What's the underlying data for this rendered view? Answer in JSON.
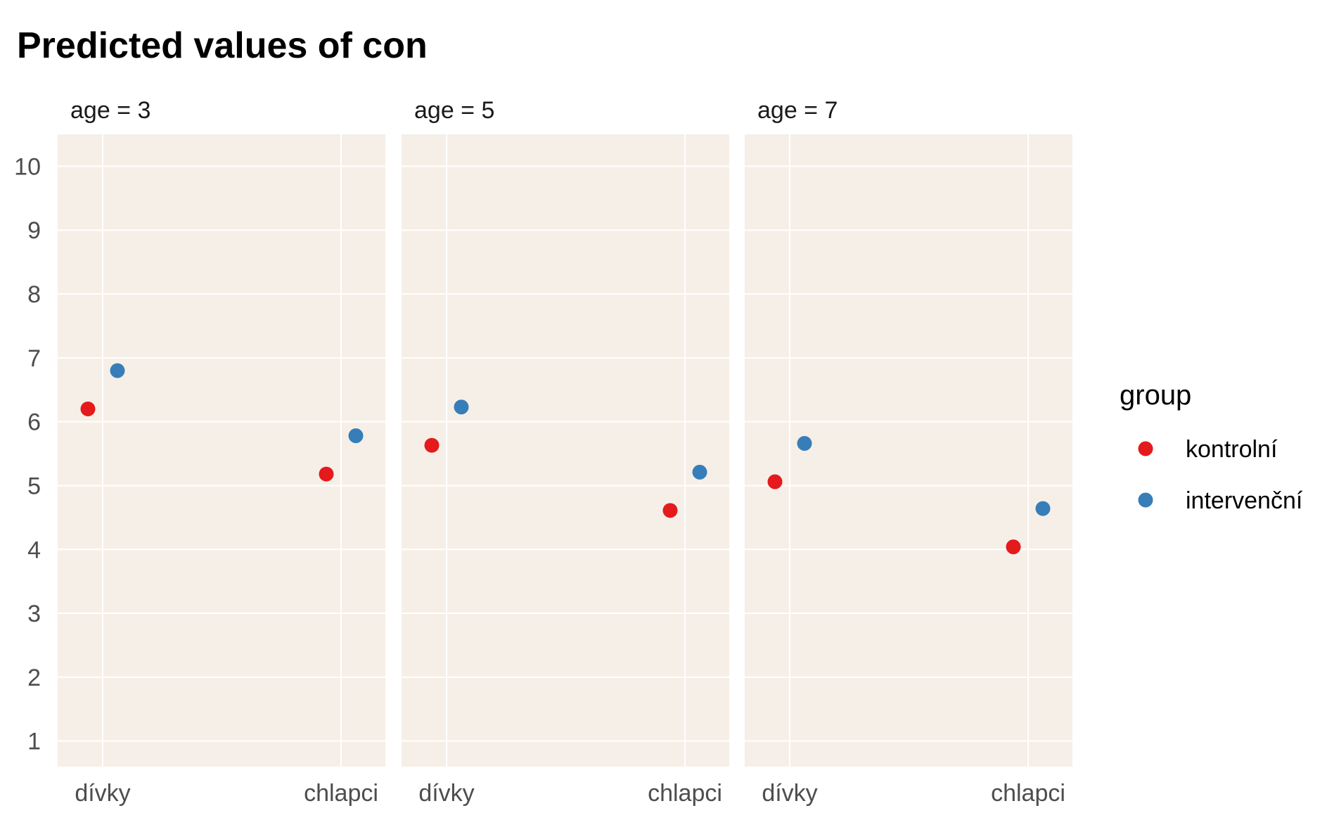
{
  "chart_data": {
    "type": "scatter",
    "title": "Predicted values of con",
    "xlabel": "",
    "ylabel": "",
    "ylim": [
      0.6,
      10.5
    ],
    "yticks": [
      "1",
      "2",
      "3",
      "4",
      "5",
      "6",
      "7",
      "8",
      "9",
      "10"
    ],
    "categories": [
      "dívky",
      "chlapci"
    ],
    "grid": true,
    "panel_background": "#f5efe8",
    "legend": {
      "title": "group",
      "placement": "right",
      "entries": [
        "kontrolní",
        "intervenční"
      ]
    },
    "series_colors": {
      "kontrolní": "#e41a1c",
      "intervenční": "#377eb8"
    },
    "facets": [
      {
        "label": "age = 3",
        "series": [
          {
            "name": "kontrolní",
            "values": [
              6.2,
              5.18
            ]
          },
          {
            "name": "intervenční",
            "values": [
              6.8,
              5.78
            ]
          }
        ]
      },
      {
        "label": "age = 5",
        "series": [
          {
            "name": "kontrolní",
            "values": [
              5.63,
              4.61
            ]
          },
          {
            "name": "intervenční",
            "values": [
              6.23,
              5.21
            ]
          }
        ]
      },
      {
        "label": "age = 7",
        "series": [
          {
            "name": "kontrolní",
            "values": [
              5.06,
              4.04
            ]
          },
          {
            "name": "intervenční",
            "values": [
              5.66,
              4.64
            ]
          }
        ]
      }
    ]
  }
}
